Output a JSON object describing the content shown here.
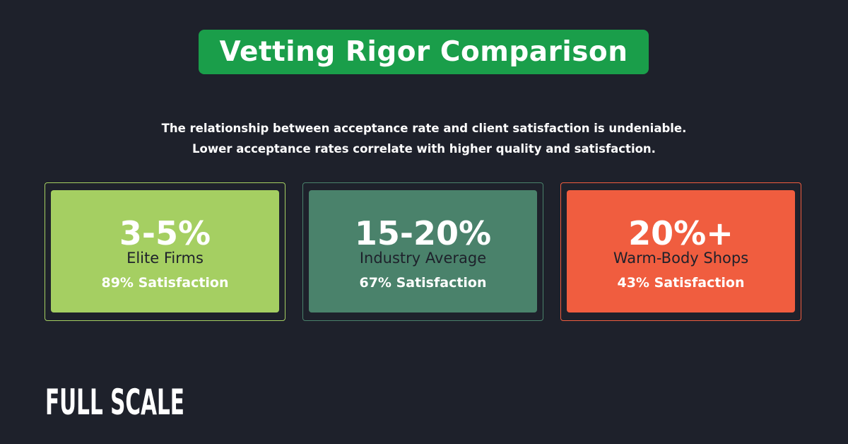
{
  "header": {
    "title": "Vetting Rigor Comparison",
    "subtitle": [
      "The relationship between acceptance rate and client satisfaction is undeniable.",
      "Lower acceptance rates correlate with higher quality and satisfaction."
    ]
  },
  "cards": [
    {
      "rate": "3-5%",
      "label": "Elite Firms",
      "satisfaction": "89% Satisfaction"
    },
    {
      "rate": "15-20%",
      "label": "Industry Average",
      "satisfaction": "67% Satisfaction"
    },
    {
      "rate": "20%+",
      "label": "Warm-Body Shops",
      "satisfaction": "43% Satisfaction"
    }
  ],
  "logo": "FULL SCALE"
}
